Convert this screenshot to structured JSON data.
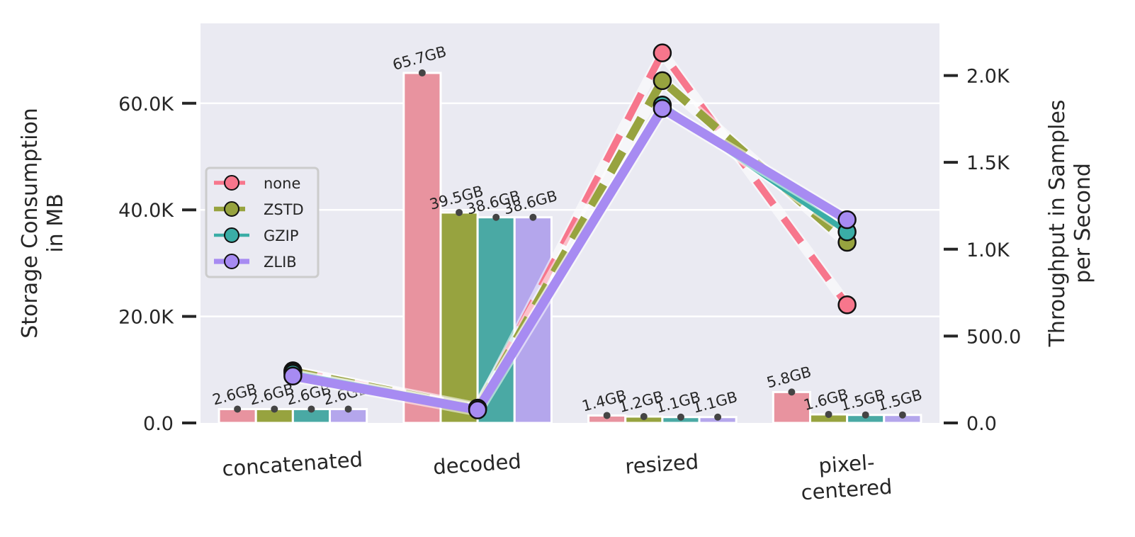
{
  "chart_data": {
    "type": "bar",
    "categories": [
      "concatenated",
      "decoded",
      "resized",
      "pixel-centered"
    ],
    "category_lines": [
      [
        "concatenated"
      ],
      [
        "decoded"
      ],
      [
        "resized"
      ],
      [
        "pixel-",
        "centered"
      ]
    ],
    "left_axis": {
      "label_lines": [
        "Storage Consumption",
        "in MB"
      ],
      "ylim": [
        0,
        75000
      ],
      "ticks": [
        0,
        20000,
        40000,
        60000
      ],
      "tick_labels": [
        "0.0",
        "20.0K",
        "40.0K",
        "60.0K"
      ]
    },
    "right_axis": {
      "label_lines": [
        "Throughput in Samples",
        "per Second"
      ],
      "ylim": [
        0,
        2300
      ],
      "ticks": [
        0,
        500,
        1000,
        1500,
        2000
      ],
      "tick_labels": [
        "0.0",
        "500.0",
        "1.0K",
        "1.5K",
        "2.0K"
      ]
    },
    "grid": true,
    "legend_position": "center-left",
    "bar_series": [
      {
        "name": "none",
        "color": "#e8939f",
        "values": [
          2600,
          65700,
          1400,
          5800
        ],
        "labels": [
          "2.6GB",
          "65.7GB",
          "1.4GB",
          "5.8GB"
        ]
      },
      {
        "name": "ZSTD",
        "color": "#97a33f",
        "values": [
          2600,
          39500,
          1200,
          1600
        ],
        "labels": [
          "2.6GB",
          "39.5GB",
          "1.2GB",
          "1.6GB"
        ]
      },
      {
        "name": "GZIP",
        "color": "#4aa9a4",
        "values": [
          2600,
          38600,
          1100,
          1500
        ],
        "labels": [
          "2.6GB",
          "38.6GB",
          "1.1GB",
          "1.5GB"
        ]
      },
      {
        "name": "ZLIB",
        "color": "#b4a6ec",
        "values": [
          2600,
          38600,
          1100,
          1500
        ],
        "labels": [
          "2.6GB",
          "38.6GB",
          "1.1GB",
          "1.5GB"
        ]
      }
    ],
    "line_series": [
      {
        "name": "none",
        "color": "#f7768c",
        "dash": "42,24",
        "width": 10,
        "values": [
          300,
          80,
          2130,
          680
        ]
      },
      {
        "name": "ZSTD",
        "color": "#97a33f",
        "dash": "34,20",
        "width": 12,
        "values": [
          295,
          85,
          1970,
          1040
        ]
      },
      {
        "name": "GZIP",
        "color": "#3aada6",
        "dash": "",
        "width": 8,
        "values": [
          285,
          85,
          1830,
          1100
        ]
      },
      {
        "name": "ZLIB",
        "color": "#a78bf2",
        "dash": "",
        "width": 13,
        "values": [
          270,
          75,
          1810,
          1170
        ]
      }
    ]
  }
}
